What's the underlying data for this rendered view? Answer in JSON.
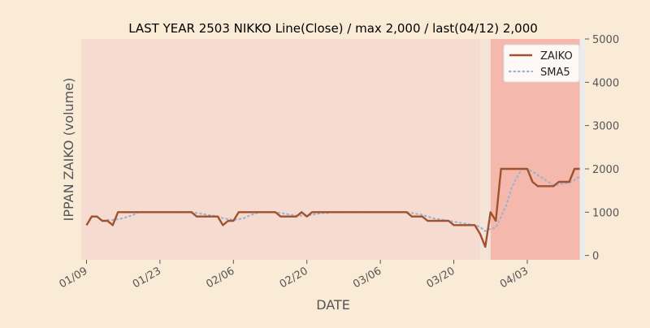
{
  "colors": {
    "page_background": "#faebd7",
    "plot_band_main": "#f6dbd1",
    "plot_band_gap": "#f5e4d8",
    "plot_band_highlight": "#f4b8ac",
    "plot_edge": "#ececec",
    "zaiko_line": "#a0522d",
    "sma_line": "#9fb3cf",
    "text": "#222222",
    "axis_text": "#555555"
  },
  "chart_data": {
    "type": "line",
    "title": "LAST YEAR 2503 NIKKO Line(Close) / max 2,000 / last(04/12) 2,000",
    "xlabel": "DATE",
    "ylabel": "IPPAN ZAIKO (volume)",
    "y_axis_side": "right",
    "ylim": [
      -100,
      5000
    ],
    "yticks": [
      0,
      1000,
      2000,
      3000,
      4000,
      5000
    ],
    "xlim": [
      "01/08",
      "04/14"
    ],
    "xticks": [
      "01/09",
      "01/23",
      "02/06",
      "02/20",
      "03/06",
      "03/20",
      "04/03"
    ],
    "xtick_rotation": 30,
    "grid": false,
    "legend_position": "upper right",
    "background_bands": [
      {
        "from": "01/08",
        "to": "03/25",
        "color": "main"
      },
      {
        "from": "03/25",
        "to": "03/27",
        "color": "gap"
      },
      {
        "from": "03/27",
        "to": "04/13",
        "color": "highlight"
      }
    ],
    "series": [
      {
        "name": "ZAIKO",
        "style": "solid",
        "points": [
          [
            "01/09",
            700
          ],
          [
            "01/10",
            900
          ],
          [
            "01/11",
            900
          ],
          [
            "01/12",
            800
          ],
          [
            "01/13",
            800
          ],
          [
            "01/14",
            700
          ],
          [
            "01/15",
            1000
          ],
          [
            "01/16",
            1000
          ],
          [
            "01/17",
            1000
          ],
          [
            "01/18",
            1000
          ],
          [
            "01/19",
            1000
          ],
          [
            "01/20",
            1000
          ],
          [
            "01/21",
            1000
          ],
          [
            "01/22",
            1000
          ],
          [
            "01/23",
            1000
          ],
          [
            "01/24",
            1000
          ],
          [
            "01/25",
            1000
          ],
          [
            "01/26",
            1000
          ],
          [
            "01/27",
            1000
          ],
          [
            "01/28",
            1000
          ],
          [
            "01/29",
            1000
          ],
          [
            "01/30",
            900
          ],
          [
            "01/31",
            900
          ],
          [
            "02/01",
            900
          ],
          [
            "02/02",
            900
          ],
          [
            "02/03",
            900
          ],
          [
            "02/04",
            700
          ],
          [
            "02/05",
            800
          ],
          [
            "02/06",
            800
          ],
          [
            "02/07",
            1000
          ],
          [
            "02/08",
            1000
          ],
          [
            "02/09",
            1000
          ],
          [
            "02/10",
            1000
          ],
          [
            "02/11",
            1000
          ],
          [
            "02/12",
            1000
          ],
          [
            "02/13",
            1000
          ],
          [
            "02/14",
            1000
          ],
          [
            "02/15",
            900
          ],
          [
            "02/16",
            900
          ],
          [
            "02/17",
            900
          ],
          [
            "02/18",
            900
          ],
          [
            "02/19",
            1000
          ],
          [
            "02/20",
            900
          ],
          [
            "02/21",
            1000
          ],
          [
            "02/22",
            1000
          ],
          [
            "02/23",
            1000
          ],
          [
            "02/24",
            1000
          ],
          [
            "02/25",
            1000
          ],
          [
            "02/26",
            1000
          ],
          [
            "02/27",
            1000
          ],
          [
            "02/28",
            1000
          ],
          [
            "03/01",
            1000
          ],
          [
            "03/02",
            1000
          ],
          [
            "03/03",
            1000
          ],
          [
            "03/04",
            1000
          ],
          [
            "03/05",
            1000
          ],
          [
            "03/06",
            1000
          ],
          [
            "03/07",
            1000
          ],
          [
            "03/08",
            1000
          ],
          [
            "03/09",
            1000
          ],
          [
            "03/10",
            1000
          ],
          [
            "03/11",
            1000
          ],
          [
            "03/12",
            900
          ],
          [
            "03/13",
            900
          ],
          [
            "03/14",
            900
          ],
          [
            "03/15",
            800
          ],
          [
            "03/16",
            800
          ],
          [
            "03/17",
            800
          ],
          [
            "03/18",
            800
          ],
          [
            "03/19",
            800
          ],
          [
            "03/20",
            700
          ],
          [
            "03/21",
            700
          ],
          [
            "03/22",
            700
          ],
          [
            "03/23",
            700
          ],
          [
            "03/24",
            700
          ],
          [
            "03/25",
            500
          ],
          [
            "03/26",
            200
          ],
          [
            "03/27",
            1000
          ],
          [
            "03/28",
            800
          ],
          [
            "03/29",
            2000
          ],
          [
            "03/30",
            2000
          ],
          [
            "03/31",
            2000
          ],
          [
            "04/01",
            2000
          ],
          [
            "04/02",
            2000
          ],
          [
            "04/03",
            2000
          ],
          [
            "04/04",
            1700
          ],
          [
            "04/05",
            1600
          ],
          [
            "04/06",
            1600
          ],
          [
            "04/07",
            1600
          ],
          [
            "04/08",
            1600
          ],
          [
            "04/09",
            1700
          ],
          [
            "04/10",
            1700
          ],
          [
            "04/11",
            1700
          ],
          [
            "04/12",
            2000
          ],
          [
            "04/13",
            2000
          ]
        ]
      },
      {
        "name": "SMA5",
        "style": "dotted",
        "points": [
          [
            "01/13",
            820
          ],
          [
            "01/14",
            820
          ],
          [
            "01/15",
            840
          ],
          [
            "01/16",
            860
          ],
          [
            "01/17",
            900
          ],
          [
            "01/18",
            940
          ],
          [
            "01/19",
            1000
          ],
          [
            "01/20",
            1000
          ],
          [
            "01/21",
            1000
          ],
          [
            "01/22",
            1000
          ],
          [
            "01/23",
            1000
          ],
          [
            "01/24",
            1000
          ],
          [
            "01/25",
            1000
          ],
          [
            "01/26",
            1000
          ],
          [
            "01/27",
            1000
          ],
          [
            "01/28",
            1000
          ],
          [
            "01/29",
            1000
          ],
          [
            "01/30",
            980
          ],
          [
            "01/31",
            960
          ],
          [
            "02/01",
            940
          ],
          [
            "02/02",
            920
          ],
          [
            "02/03",
            900
          ],
          [
            "02/04",
            860
          ],
          [
            "02/05",
            840
          ],
          [
            "02/06",
            820
          ],
          [
            "02/07",
            840
          ],
          [
            "02/08",
            860
          ],
          [
            "02/09",
            920
          ],
          [
            "02/10",
            960
          ],
          [
            "02/11",
            1000
          ],
          [
            "02/12",
            1000
          ],
          [
            "02/13",
            1000
          ],
          [
            "02/14",
            1000
          ],
          [
            "02/15",
            980
          ],
          [
            "02/16",
            960
          ],
          [
            "02/17",
            940
          ],
          [
            "02/18",
            920
          ],
          [
            "02/19",
            920
          ],
          [
            "02/20",
            920
          ],
          [
            "02/21",
            940
          ],
          [
            "02/22",
            960
          ],
          [
            "02/23",
            980
          ],
          [
            "02/24",
            980
          ],
          [
            "02/25",
            1000
          ],
          [
            "02/26",
            1000
          ],
          [
            "02/27",
            1000
          ],
          [
            "02/28",
            1000
          ],
          [
            "03/01",
            1000
          ],
          [
            "03/02",
            1000
          ],
          [
            "03/03",
            1000
          ],
          [
            "03/04",
            1000
          ],
          [
            "03/05",
            1000
          ],
          [
            "03/06",
            1000
          ],
          [
            "03/07",
            1000
          ],
          [
            "03/08",
            1000
          ],
          [
            "03/09",
            1000
          ],
          [
            "03/10",
            1000
          ],
          [
            "03/11",
            1000
          ],
          [
            "03/12",
            980
          ],
          [
            "03/13",
            960
          ],
          [
            "03/14",
            940
          ],
          [
            "03/15",
            900
          ],
          [
            "03/16",
            860
          ],
          [
            "03/17",
            840
          ],
          [
            "03/18",
            820
          ],
          [
            "03/19",
            800
          ],
          [
            "03/20",
            780
          ],
          [
            "03/21",
            760
          ],
          [
            "03/22",
            740
          ],
          [
            "03/23",
            720
          ],
          [
            "03/24",
            700
          ],
          [
            "03/25",
            660
          ],
          [
            "03/26",
            560
          ],
          [
            "03/27",
            620
          ],
          [
            "03/28",
            640
          ],
          [
            "03/29",
            900
          ],
          [
            "03/30",
            1160
          ],
          [
            "03/31",
            1560
          ],
          [
            "04/01",
            1800
          ],
          [
            "04/02",
            2000
          ],
          [
            "04/03",
            2000
          ],
          [
            "04/04",
            1940
          ],
          [
            "04/05",
            1860
          ],
          [
            "04/06",
            1780
          ],
          [
            "04/07",
            1700
          ],
          [
            "04/08",
            1620
          ],
          [
            "04/09",
            1640
          ],
          [
            "04/10",
            1660
          ],
          [
            "04/11",
            1680
          ],
          [
            "04/12",
            1740
          ],
          [
            "04/13",
            1820
          ]
        ]
      }
    ]
  }
}
